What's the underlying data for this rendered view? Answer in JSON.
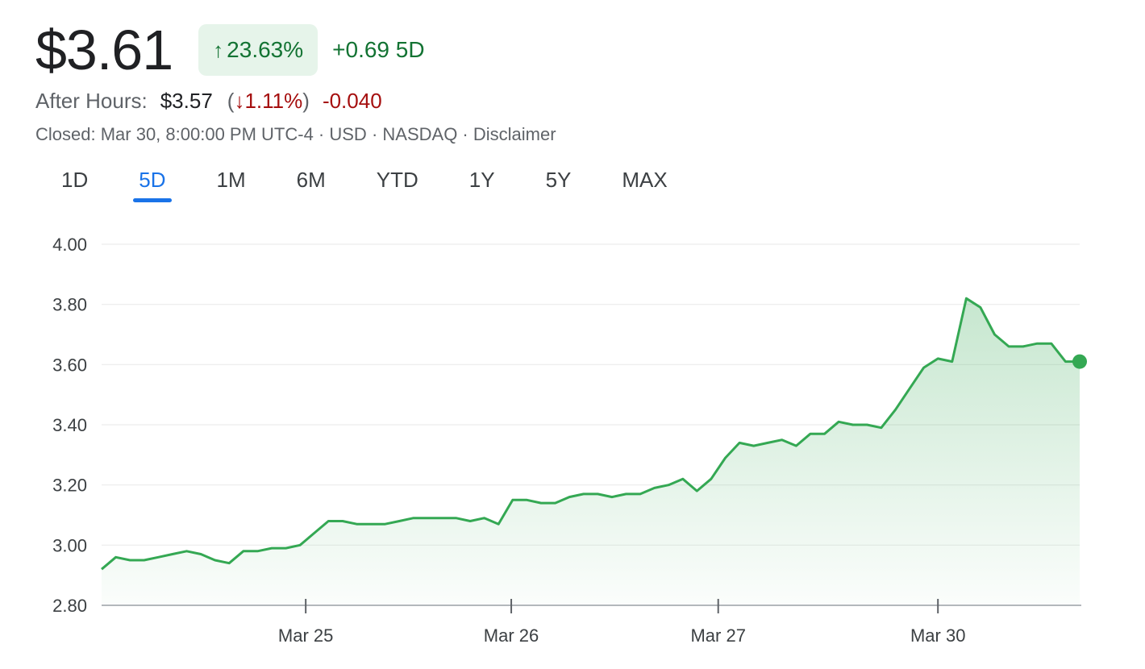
{
  "quote": {
    "price": "$3.61",
    "change_arrow": "↑",
    "change_pct": "23.63%",
    "change_abs": "+0.69",
    "range_label": "5D",
    "positive_color": "#137333",
    "negative_color": "#a50e0e"
  },
  "after_hours": {
    "label": "After Hours:",
    "price": "$3.57",
    "paren_open": "(",
    "arrow": "↓",
    "pct": "1.11%",
    "paren_close": ")",
    "abs": "-0.040"
  },
  "meta": {
    "closed": "Closed: Mar 30, 8:00:00 PM UTC-4",
    "sep1": " · ",
    "currency": "USD",
    "sep2": " · ",
    "exchange": "NASDAQ",
    "sep3": " · ",
    "disclaimer": "Disclaimer"
  },
  "tabs": [
    {
      "label": "1D",
      "active": false
    },
    {
      "label": "5D",
      "active": true
    },
    {
      "label": "1M",
      "active": false
    },
    {
      "label": "6M",
      "active": false
    },
    {
      "label": "YTD",
      "active": false
    },
    {
      "label": "1Y",
      "active": false
    },
    {
      "label": "5Y",
      "active": false
    },
    {
      "label": "MAX",
      "active": false
    }
  ],
  "chart_data": {
    "type": "area",
    "title": "",
    "xlabel": "",
    "ylabel": "",
    "ylim": [
      2.8,
      4.0
    ],
    "y_ticks": [
      "4.00",
      "3.80",
      "3.60",
      "3.40",
      "3.20",
      "3.00",
      "2.80"
    ],
    "y_tick_values": [
      4.0,
      3.8,
      3.6,
      3.4,
      3.2,
      3.0,
      2.8
    ],
    "x_tick_labels": [
      "Mar 25",
      "Mar 26",
      "Mar 27",
      "Mar 30"
    ],
    "x_tick_index": [
      14.4,
      28.9,
      43.5,
      59.0
    ],
    "grid": true,
    "line_color": "#34a853",
    "fill_color": "#34a853",
    "series": [
      {
        "values": [
          2.92,
          2.96,
          2.95,
          2.95,
          2.96,
          2.97,
          2.98,
          2.97,
          2.95,
          2.94,
          2.98,
          2.98,
          2.99,
          2.99,
          3.0,
          3.04,
          3.08,
          3.08,
          3.07,
          3.07,
          3.07,
          3.08,
          3.09,
          3.09,
          3.09,
          3.09,
          3.08,
          3.09,
          3.07,
          3.15,
          3.15,
          3.14,
          3.14,
          3.16,
          3.17,
          3.17,
          3.16,
          3.17,
          3.17,
          3.19,
          3.2,
          3.22,
          3.18,
          3.22,
          3.29,
          3.34,
          3.33,
          3.34,
          3.35,
          3.33,
          3.37,
          3.37,
          3.41,
          3.4,
          3.4,
          3.39,
          3.45,
          3.52,
          3.59,
          3.62,
          3.61,
          3.82,
          3.79,
          3.7,
          3.66,
          3.66,
          3.67,
          3.67,
          3.61,
          3.61
        ]
      }
    ]
  }
}
